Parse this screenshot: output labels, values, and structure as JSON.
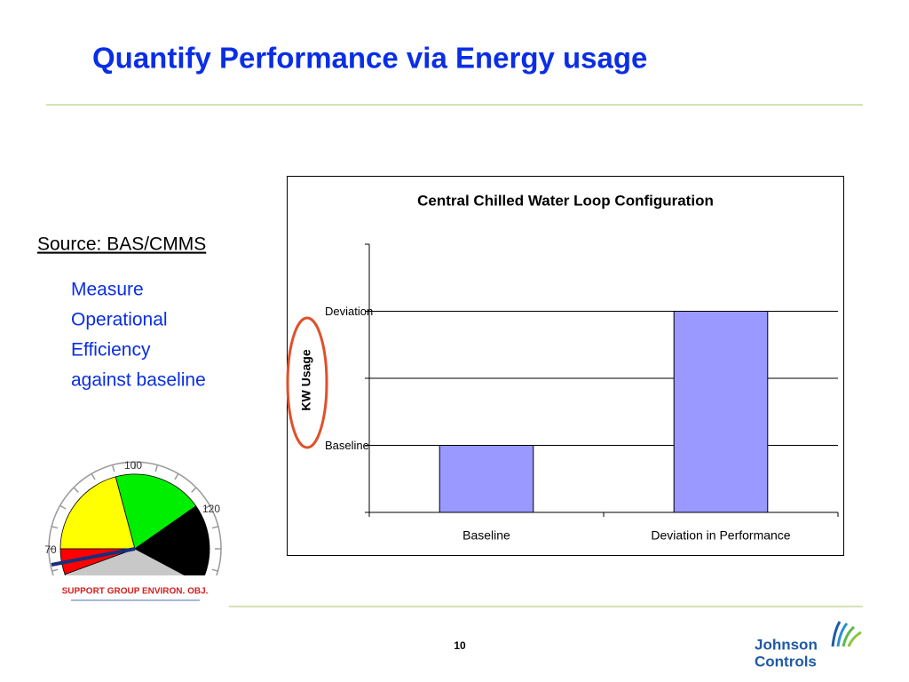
{
  "slide": {
    "title": "Quantify Performance via Energy usage",
    "source": "Source: BAS/CMMS",
    "body": [
      "Measure",
      "Operational",
      "Efficiency",
      "against baseline"
    ],
    "gauge": {
      "labels": [
        "100",
        "120",
        "70"
      ],
      "caption": "SUPPORT GROUP ENVIRON. OBJ."
    },
    "page_number": "10",
    "logo": [
      "Johnson",
      "Controls"
    ]
  },
  "chart_data": {
    "type": "bar",
    "title": "Central Chilled Water Loop Configuration",
    "y_label": "KW Usage",
    "categories": [
      "Baseline",
      "Deviation in Performance"
    ],
    "values": [
      1,
      3
    ],
    "color": "#9999ff",
    "ylim": [
      0,
      4
    ],
    "yticks": [
      {
        "value": 0
      },
      {
        "value": 1,
        "label": "Baseline"
      },
      {
        "value": 2
      },
      {
        "value": 3,
        "label": "Deviation"
      },
      {
        "value": 4
      }
    ],
    "grid": true
  }
}
